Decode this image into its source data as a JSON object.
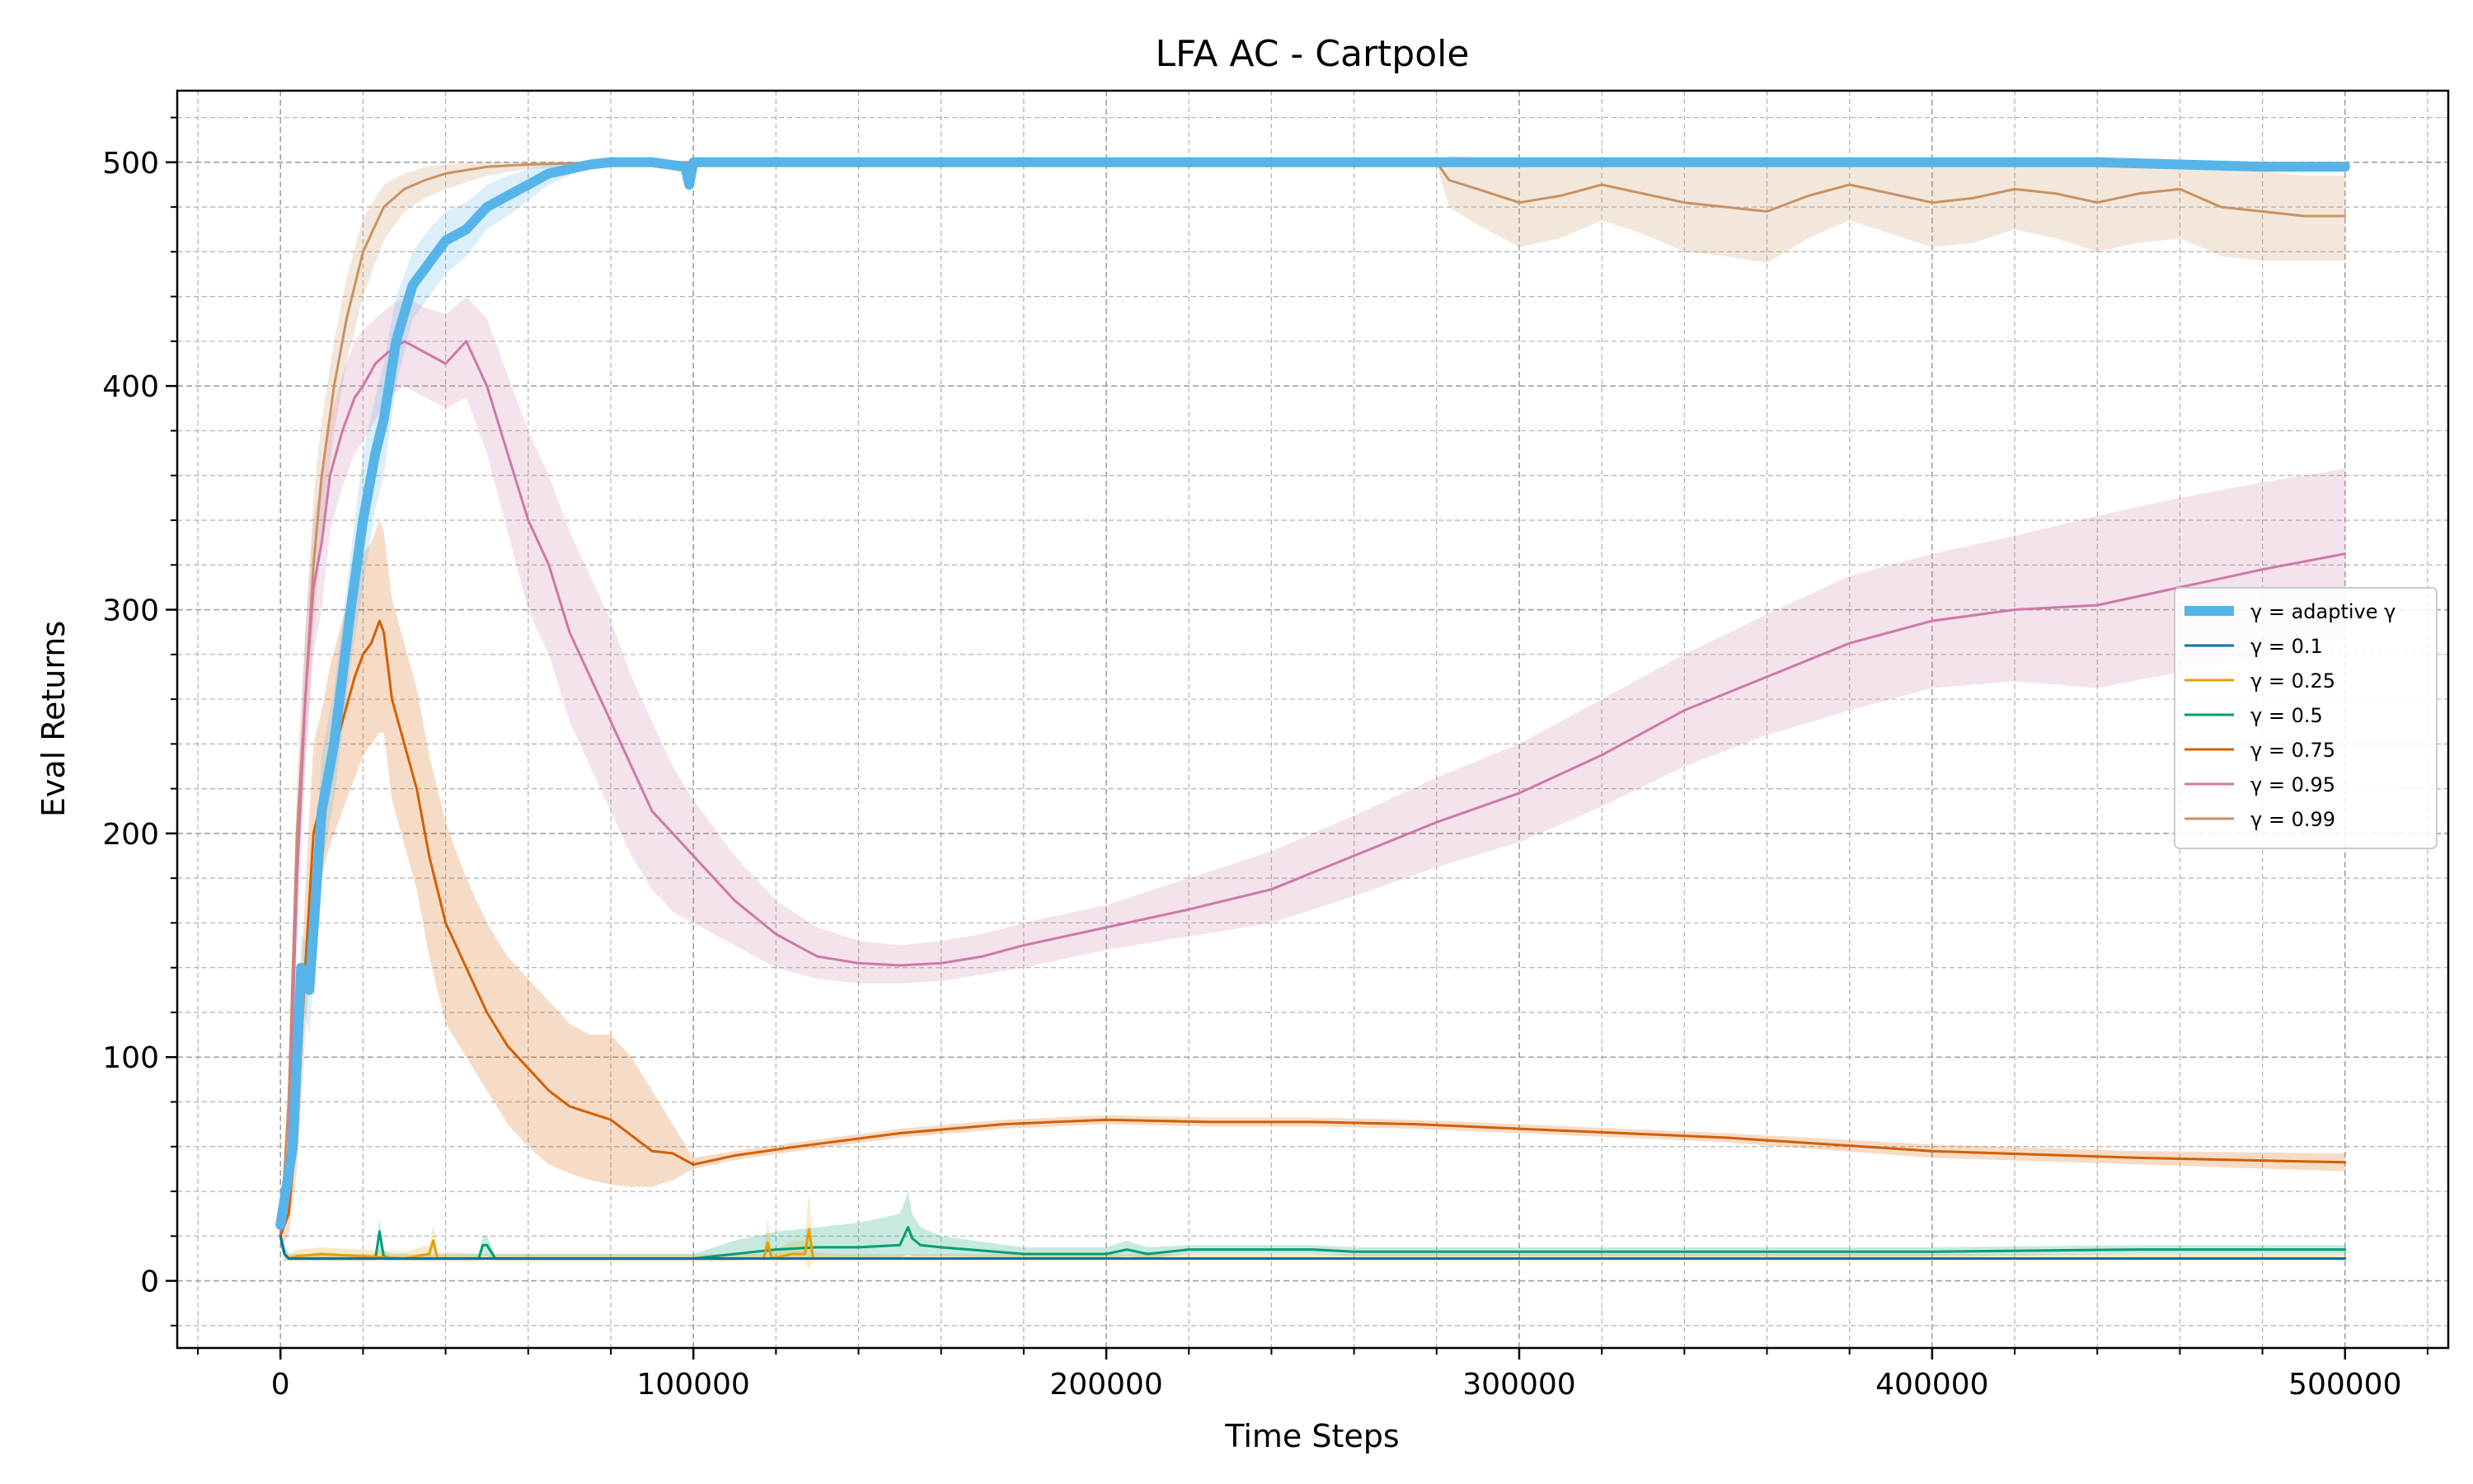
{
  "chart_data": {
    "type": "line",
    "title": "LFA AC - Cartpole",
    "xlabel": "Time Steps",
    "ylabel": "Eval Returns",
    "xlim": [
      -25000,
      525000
    ],
    "ylim": [
      -30,
      532
    ],
    "xticks": [
      0,
      100000,
      200000,
      300000,
      400000,
      500000
    ],
    "yticks": [
      0,
      100,
      200,
      300,
      400,
      500
    ],
    "grid": true,
    "legend_position": "center-right",
    "series": [
      {
        "name": "γ = adaptive γ",
        "color": "#56b4e9",
        "width": 12,
        "x": [
          0,
          3000,
          5000,
          7000,
          10000,
          13000,
          17000,
          20000,
          23000,
          25000,
          28000,
          32000,
          36000,
          40000,
          45000,
          50000,
          55000,
          60000,
          65000,
          70000,
          75000,
          80000,
          90000,
          98000,
          99000,
          100000,
          101000,
          110000,
          150000,
          200000,
          250000,
          300000,
          350000,
          400000,
          440000,
          460000,
          480000,
          500000
        ],
        "y": [
          25,
          60,
          140,
          130,
          210,
          240,
          300,
          340,
          370,
          385,
          420,
          445,
          455,
          465,
          470,
          480,
          485,
          490,
          495,
          497,
          499,
          500,
          500,
          498,
          490,
          500,
          500,
          500,
          500,
          500,
          500,
          500,
          500,
          500,
          500,
          499,
          498,
          498
        ],
        "upper": [
          30,
          75,
          155,
          150,
          235,
          265,
          325,
          370,
          395,
          410,
          440,
          460,
          470,
          478,
          482,
          490,
          494,
          497,
          499,
          500,
          500,
          500,
          500,
          500,
          500,
          500,
          500,
          500,
          500,
          500,
          500,
          500,
          500,
          500,
          500,
          500,
          500,
          500
        ],
        "lower": [
          20,
          45,
          125,
          110,
          185,
          215,
          275,
          310,
          345,
          360,
          400,
          430,
          440,
          450,
          458,
          470,
          476,
          483,
          490,
          494,
          498,
          499,
          499,
          495,
          485,
          499,
          499,
          499,
          499,
          499,
          499,
          499,
          499,
          499,
          499,
          498,
          496,
          496
        ]
      },
      {
        "name": "γ = 0.1",
        "color": "#0072b2",
        "width": 3,
        "x": [
          0,
          1000,
          2000,
          3000,
          100000,
          200000,
          300000,
          400000,
          500000
        ],
        "y": [
          20,
          12,
          10,
          10,
          10,
          10,
          10,
          10,
          10
        ]
      },
      {
        "name": "γ = 0.25",
        "color": "#e69f00",
        "width": 3,
        "x": [
          0,
          1000,
          2000,
          4000,
          10000,
          30000,
          36000,
          37000,
          38000,
          50000,
          117000,
          118000,
          119000,
          124000,
          127000,
          128000,
          129000,
          135000,
          200000,
          300000,
          400000,
          500000
        ],
        "y": [
          20,
          12,
          10,
          11,
          12,
          10,
          12,
          18,
          10,
          10,
          10,
          17,
          10,
          12,
          12,
          23,
          10,
          10,
          10,
          10,
          10,
          10
        ],
        "upper": [
          24,
          16,
          12,
          14,
          15,
          13,
          16,
          25,
          13,
          12,
          12,
          28,
          13,
          18,
          18,
          40,
          13,
          12,
          12,
          12,
          12,
          12
        ],
        "lower": [
          16,
          9,
          9,
          9,
          9,
          9,
          9,
          9,
          9,
          9,
          9,
          9,
          9,
          9,
          9,
          5,
          9,
          9,
          9,
          9,
          9,
          9
        ]
      },
      {
        "name": "γ = 0.5",
        "color": "#009e73",
        "width": 3,
        "x": [
          0,
          1000,
          2000,
          5000,
          10000,
          20000,
          23000,
          24000,
          25000,
          27000,
          30000,
          48000,
          49000,
          50000,
          52000,
          60000,
          100000,
          110000,
          120000,
          130000,
          140000,
          150000,
          152000,
          153000,
          155000,
          160000,
          180000,
          200000,
          205000,
          210000,
          220000,
          250000,
          260000,
          300000,
          350000,
          400000,
          450000,
          500000
        ],
        "y": [
          20,
          12,
          10,
          10,
          10,
          10,
          10,
          22,
          11,
          10,
          10,
          10,
          16,
          16,
          10,
          10,
          10,
          12,
          14,
          15,
          15,
          16,
          24,
          19,
          16,
          15,
          12,
          12,
          14,
          12,
          14,
          14,
          13,
          13,
          13,
          13,
          14,
          14
        ],
        "upper": [
          24,
          15,
          12,
          12,
          12,
          12,
          12,
          28,
          13,
          12,
          12,
          12,
          20,
          20,
          12,
          12,
          12,
          18,
          22,
          24,
          26,
          30,
          40,
          30,
          24,
          20,
          15,
          15,
          18,
          15,
          16,
          16,
          15,
          15,
          15,
          15,
          16,
          16
        ],
        "lower": [
          16,
          9,
          9,
          9,
          9,
          9,
          9,
          12,
          9,
          9,
          9,
          9,
          11,
          11,
          9,
          9,
          9,
          9,
          10,
          10,
          10,
          10,
          12,
          11,
          11,
          11,
          10,
          10,
          11,
          10,
          12,
          12,
          11,
          11,
          11,
          11,
          12,
          12
        ]
      },
      {
        "name": "γ = 0.75",
        "color": "#d55e00",
        "width": 3,
        "x": [
          0,
          2000,
          4000,
          6000,
          8000,
          10000,
          12000,
          15000,
          18000,
          20000,
          22000,
          24000,
          25000,
          27000,
          30000,
          33000,
          36000,
          40000,
          45000,
          50000,
          55000,
          60000,
          65000,
          70000,
          75000,
          80000,
          85000,
          90000,
          95000,
          100000,
          110000,
          125000,
          150000,
          175000,
          200000,
          225000,
          250000,
          275000,
          300000,
          350000,
          400000,
          450000,
          500000
        ],
        "y": [
          20,
          30,
          70,
          140,
          200,
          215,
          230,
          250,
          270,
          280,
          285,
          295,
          290,
          260,
          240,
          220,
          190,
          160,
          140,
          120,
          105,
          95,
          85,
          78,
          75,
          72,
          65,
          58,
          57,
          52,
          56,
          60,
          66,
          70,
          72,
          71,
          71,
          70,
          68,
          64,
          58,
          55,
          53
        ],
        "upper": [
          25,
          45,
          95,
          175,
          240,
          255,
          275,
          295,
          315,
          325,
          330,
          340,
          335,
          305,
          285,
          265,
          235,
          205,
          180,
          160,
          145,
          135,
          125,
          115,
          110,
          110,
          100,
          85,
          70,
          55,
          58,
          62,
          68,
          72,
          74,
          73,
          73,
          72,
          70,
          66,
          61,
          58,
          57
        ],
        "lower": [
          15,
          20,
          50,
          110,
          165,
          180,
          195,
          210,
          225,
          235,
          240,
          245,
          245,
          215,
          195,
          175,
          145,
          115,
          100,
          85,
          70,
          60,
          52,
          48,
          45,
          43,
          42,
          42,
          45,
          50,
          54,
          58,
          64,
          68,
          70,
          69,
          69,
          68,
          66,
          62,
          55,
          52,
          49
        ]
      },
      {
        "name": "γ = 0.95",
        "color": "#cc79a7",
        "width": 3,
        "x": [
          0,
          2000,
          4000,
          6000,
          8000,
          10000,
          12000,
          15000,
          18000,
          20000,
          23000,
          26000,
          30000,
          35000,
          40000,
          45000,
          50000,
          55000,
          60000,
          65000,
          70000,
          75000,
          80000,
          85000,
          90000,
          95000,
          100000,
          110000,
          120000,
          130000,
          140000,
          150000,
          160000,
          170000,
          180000,
          200000,
          220000,
          240000,
          260000,
          280000,
          300000,
          320000,
          340000,
          360000,
          380000,
          400000,
          420000,
          440000,
          460000,
          480000,
          500000
        ],
        "y": [
          20,
          60,
          180,
          260,
          310,
          330,
          360,
          380,
          395,
          400,
          410,
          415,
          420,
          415,
          410,
          420,
          400,
          370,
          340,
          320,
          290,
          270,
          250,
          230,
          210,
          200,
          190,
          170,
          155,
          145,
          142,
          141,
          142,
          145,
          150,
          158,
          166,
          175,
          190,
          205,
          218,
          235,
          255,
          270,
          285,
          295,
          300,
          302,
          310,
          318,
          325
        ],
        "upper": [
          25,
          75,
          210,
          290,
          340,
          360,
          385,
          405,
          420,
          425,
          430,
          435,
          440,
          435,
          432,
          440,
          430,
          405,
          380,
          360,
          335,
          315,
          295,
          270,
          250,
          230,
          215,
          190,
          170,
          158,
          152,
          150,
          152,
          155,
          160,
          168,
          180,
          192,
          208,
          225,
          240,
          260,
          280,
          298,
          315,
          325,
          333,
          342,
          350,
          357,
          363
        ],
        "lower": [
          15,
          45,
          150,
          230,
          280,
          300,
          335,
          355,
          370,
          375,
          385,
          395,
          400,
          395,
          390,
          395,
          370,
          335,
          300,
          280,
          250,
          230,
          210,
          190,
          175,
          165,
          160,
          150,
          140,
          135,
          133,
          133,
          134,
          137,
          140,
          148,
          154,
          160,
          172,
          185,
          196,
          212,
          230,
          244,
          255,
          265,
          268,
          265,
          272,
          280,
          287
        ]
      },
      {
        "name": "γ = 0.99",
        "color": "#ca9161",
        "width": 3,
        "x": [
          0,
          2000,
          4000,
          6000,
          8000,
          10000,
          13000,
          16000,
          20000,
          25000,
          30000,
          35000,
          40000,
          50000,
          60000,
          80000,
          100000,
          200000,
          280000,
          283000,
          290000,
          300000,
          310000,
          320000,
          330000,
          340000,
          350000,
          360000,
          370000,
          380000,
          390000,
          400000,
          410000,
          420000,
          430000,
          440000,
          450000,
          460000,
          470000,
          480000,
          490000,
          500000
        ],
        "y": [
          20,
          80,
          200,
          260,
          320,
          360,
          400,
          430,
          460,
          480,
          488,
          492,
          495,
          498,
          499,
          500,
          500,
          500,
          500,
          492,
          488,
          482,
          485,
          490,
          486,
          482,
          480,
          478,
          485,
          490,
          486,
          482,
          484,
          488,
          486,
          482,
          486,
          488,
          480,
          478,
          476,
          476
        ],
        "upper": [
          25,
          95,
          225,
          290,
          350,
          385,
          420,
          448,
          475,
          490,
          495,
          498,
          499,
          500,
          500,
          500,
          500,
          500,
          500,
          503,
          502,
          500,
          500,
          500,
          500,
          500,
          500,
          498,
          500,
          500,
          500,
          498,
          500,
          500,
          500,
          498,
          500,
          500,
          498,
          496,
          494,
          494
        ],
        "lower": [
          15,
          65,
          175,
          230,
          290,
          335,
          380,
          410,
          440,
          465,
          478,
          484,
          488,
          494,
          497,
          499,
          499,
          499,
          499,
          480,
          472,
          462,
          466,
          474,
          468,
          460,
          458,
          455,
          466,
          474,
          468,
          462,
          464,
          470,
          466,
          460,
          464,
          466,
          458,
          456,
          456,
          456
        ]
      }
    ]
  }
}
